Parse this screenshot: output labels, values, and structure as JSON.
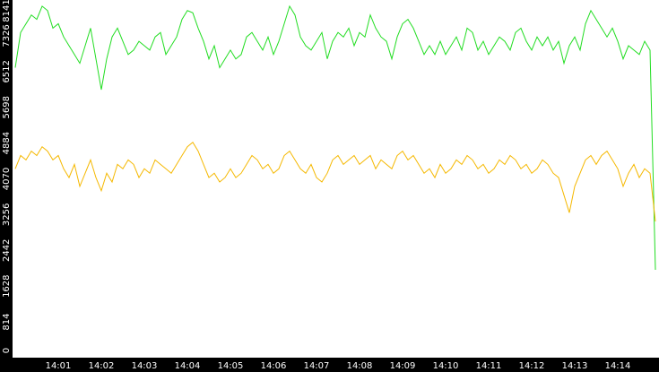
{
  "chart_data": {
    "type": "line",
    "categories": [
      null,
      null,
      null,
      null,
      null,
      null,
      null,
      null,
      "14:01",
      null,
      null,
      null,
      null,
      null,
      null,
      null,
      "14:02",
      null,
      null,
      null,
      null,
      null,
      null,
      null,
      "14:03",
      null,
      null,
      null,
      null,
      null,
      null,
      null,
      "14:04",
      null,
      null,
      null,
      null,
      null,
      null,
      null,
      "14:05",
      null,
      null,
      null,
      null,
      null,
      null,
      null,
      "14:06",
      null,
      null,
      null,
      null,
      null,
      null,
      null,
      "14:07",
      null,
      null,
      null,
      null,
      null,
      null,
      null,
      "14:08",
      null,
      null,
      null,
      null,
      null,
      null,
      null,
      "14:09",
      null,
      null,
      null,
      null,
      null,
      null,
      null,
      "14:10",
      null,
      null,
      null,
      null,
      null,
      null,
      null,
      "14:11",
      null,
      null,
      null,
      null,
      null,
      null,
      null,
      "14:12",
      null,
      null,
      null,
      null,
      null,
      null,
      null,
      "14:13",
      null,
      null,
      null,
      null,
      null,
      null,
      null,
      "14:14",
      null,
      null,
      null,
      null,
      null,
      null,
      null
    ],
    "series": [
      {
        "color": "#22dd22",
        "values": [
          6600,
          7400,
          7600,
          7800,
          7700,
          8000,
          7900,
          7500,
          7600,
          7300,
          7100,
          6900,
          6700,
          7100,
          7500,
          6800,
          6100,
          6800,
          7300,
          7500,
          7200,
          6900,
          7000,
          7200,
          7100,
          7000,
          7300,
          7400,
          6900,
          7100,
          7300,
          7700,
          7900,
          7850,
          7500,
          7200,
          6800,
          7100,
          6600,
          6800,
          7000,
          6800,
          6900,
          7300,
          7400,
          7200,
          7000,
          7300,
          6900,
          7200,
          7600,
          8000,
          7800,
          7300,
          7100,
          7000,
          7200,
          7400,
          6800,
          7200,
          7400,
          7300,
          7500,
          7100,
          7400,
          7300,
          7800,
          7500,
          7300,
          7200,
          6800,
          7300,
          7600,
          7700,
          7500,
          7200,
          6900,
          7100,
          6900,
          7200,
          6900,
          7100,
          7300,
          7000,
          7500,
          7400,
          7000,
          7200,
          6900,
          7100,
          7300,
          7200,
          7000,
          7400,
          7500,
          7200,
          7000,
          7300,
          7100,
          7300,
          7000,
          7200,
          6700,
          7100,
          7300,
          7000,
          7600,
          7900,
          7700,
          7500,
          7300,
          7500,
          7200,
          6800,
          7100,
          7000,
          6900,
          7200,
          7000,
          2000
        ]
      },
      {
        "color": "#f5b800",
        "values": [
          4300,
          4600,
          4500,
          4700,
          4600,
          4800,
          4700,
          4500,
          4600,
          4300,
          4100,
          4400,
          3900,
          4200,
          4500,
          4100,
          3800,
          4200,
          4000,
          4400,
          4300,
          4500,
          4400,
          4100,
          4300,
          4200,
          4500,
          4400,
          4300,
          4200,
          4400,
          4600,
          4800,
          4900,
          4700,
          4400,
          4100,
          4200,
          4000,
          4100,
          4300,
          4100,
          4200,
          4400,
          4600,
          4500,
          4300,
          4400,
          4200,
          4300,
          4600,
          4700,
          4500,
          4300,
          4200,
          4400,
          4100,
          4000,
          4200,
          4500,
          4600,
          4400,
          4500,
          4600,
          4400,
          4500,
          4600,
          4300,
          4500,
          4400,
          4300,
          4600,
          4700,
          4500,
          4600,
          4400,
          4200,
          4300,
          4100,
          4400,
          4200,
          4300,
          4500,
          4400,
          4600,
          4500,
          4300,
          4400,
          4200,
          4300,
          4500,
          4400,
          4600,
          4500,
          4300,
          4400,
          4200,
          4300,
          4500,
          4400,
          4200,
          4100,
          3700,
          3300,
          3900,
          4200,
          4500,
          4600,
          4400,
          4600,
          4700,
          4500,
          4300,
          3900,
          4200,
          4400,
          4100,
          4300,
          4200,
          3100
        ]
      }
    ],
    "ylim": [
      0,
      8141
    ],
    "yticks": [
      0,
      814,
      1628,
      2442,
      3256,
      4070,
      4884,
      5698,
      6512,
      7326,
      8141
    ]
  }
}
